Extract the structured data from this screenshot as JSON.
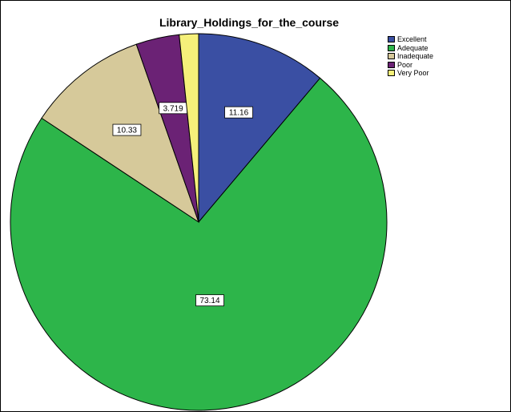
{
  "chart_data": {
    "type": "pie",
    "title": "Library_Holdings_for_the_course",
    "series": [
      {
        "name": "Excellent",
        "value": 11.16,
        "label": "11.16",
        "color": "#3a4fa3"
      },
      {
        "name": "Adequate",
        "value": 73.14,
        "label": "73.14",
        "color": "#2db54a"
      },
      {
        "name": "Inadequate",
        "value": 10.33,
        "label": "10.33",
        "color": "#d6c99a"
      },
      {
        "name": "Poor",
        "value": 3.72,
        "label": "3.719",
        "color": "#6b2275"
      },
      {
        "name": "Very Poor",
        "value": 1.65,
        "label": "",
        "color": "#f5f07a"
      }
    ],
    "legend_position": "top-right"
  }
}
